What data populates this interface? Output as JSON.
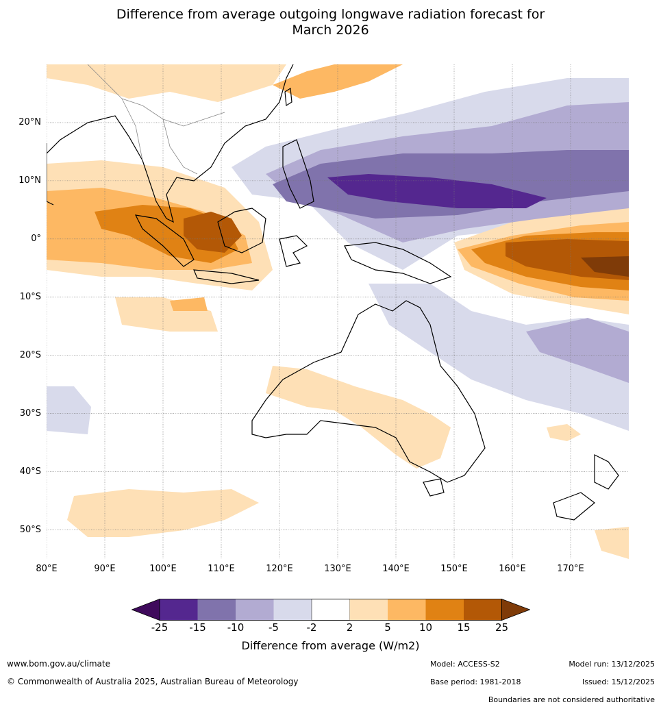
{
  "title": {
    "line1": "Difference from average outgoing longwave radiation forecast for",
    "line2": "March 2026"
  },
  "map": {
    "lat_labels": [
      "20°N",
      "10°N",
      "0°",
      "10°S",
      "20°S",
      "30°S",
      "40°S",
      "50°S"
    ],
    "lon_labels": [
      "80°E",
      "90°E",
      "100°E",
      "110°E",
      "120°E",
      "130°E",
      "140°E",
      "150°E",
      "160°E",
      "170°E"
    ],
    "lat_values": [
      20,
      10,
      0,
      -10,
      -20,
      -30,
      -40,
      -50
    ],
    "lon_values": [
      80,
      90,
      100,
      110,
      120,
      130,
      140,
      150,
      160,
      170
    ],
    "extent": {
      "lon_min": 80,
      "lon_max": 180,
      "lat_min": -55,
      "lat_max": 30
    },
    "colors": {
      "ocean": "#ffffff",
      "coastline": "#000000",
      "borders": "#888888",
      "gridline": "#777777"
    }
  },
  "legend": {
    "ticks": [
      "-25",
      "-15",
      "-10",
      "-5",
      "-2",
      "2",
      "5",
      "10",
      "15",
      "25"
    ],
    "bins": [
      {
        "label": "< -25",
        "color": "#3f0a5c"
      },
      {
        "label": "-25 to -15",
        "color": "#54278f"
      },
      {
        "label": "-15 to -10",
        "color": "#8073ac"
      },
      {
        "label": "-10 to -5",
        "color": "#b2abd2"
      },
      {
        "label": "-5 to -2",
        "color": "#d8daeb"
      },
      {
        "label": "-2 to 2",
        "color": "#ffffff"
      },
      {
        "label": "2 to 5",
        "color": "#fee0b6"
      },
      {
        "label": "5 to 10",
        "color": "#fdb863"
      },
      {
        "label": "10 to 15",
        "color": "#e08214"
      },
      {
        "label": "15 to 25",
        "color": "#b35806"
      },
      {
        "label": "> 25",
        "color": "#7f3b08"
      }
    ],
    "axis_label": "Difference from average (W/m2)"
  },
  "footer": {
    "website": "www.bom.gov.au/climate",
    "copyright": "© Commonwealth of Australia 2025, Australian Bureau of Meteorology",
    "model": "Model: ACCESS-S2",
    "base_period": "Base period: 1981-2018",
    "model_run": "Model run: 13/12/2025",
    "issued": "Issued: 15/12/2025",
    "disclaimer": "Boundaries are not considered authoritative"
  }
}
